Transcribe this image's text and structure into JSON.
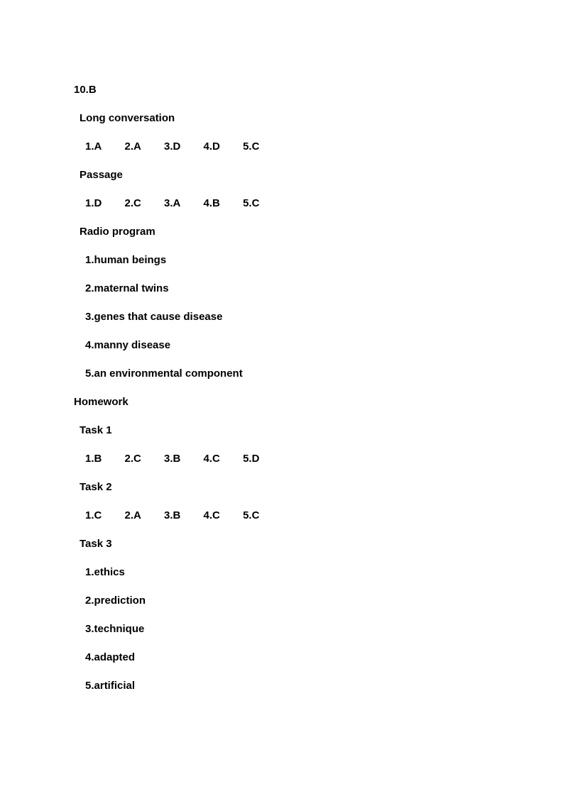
{
  "header": "10.B",
  "sections": [
    {
      "title": "Long conversation",
      "indent": 1,
      "type": "answers",
      "answers": [
        "1.A",
        "2.A",
        "3.D",
        "4.D",
        "5.C"
      ]
    },
    {
      "title": "Passage",
      "indent": 1,
      "type": "answers",
      "answers": [
        "1.D",
        "2.C",
        "3.A",
        "4.B",
        "5.C"
      ]
    },
    {
      "title": "Radio program",
      "indent": 1,
      "type": "list",
      "items": [
        "1.human beings",
        "2.maternal twins",
        "3.genes that cause disease",
        "4.manny disease",
        "5.an environmental component"
      ]
    }
  ],
  "homework": {
    "title": "Homework",
    "tasks": [
      {
        "title": "Task 1",
        "type": "answers",
        "answers": [
          "1.B",
          "2.C",
          "3.B",
          "4.C",
          "5.D"
        ]
      },
      {
        "title": "Task 2",
        "type": "answers",
        "answers": [
          "1.C",
          "2.A",
          "3.B",
          "4.C",
          "5.C"
        ]
      },
      {
        "title": "Task 3",
        "type": "list",
        "items": [
          "1.ethics",
          "2.prediction",
          "3.technique",
          "4.adapted",
          "5.artificial"
        ]
      }
    ]
  }
}
